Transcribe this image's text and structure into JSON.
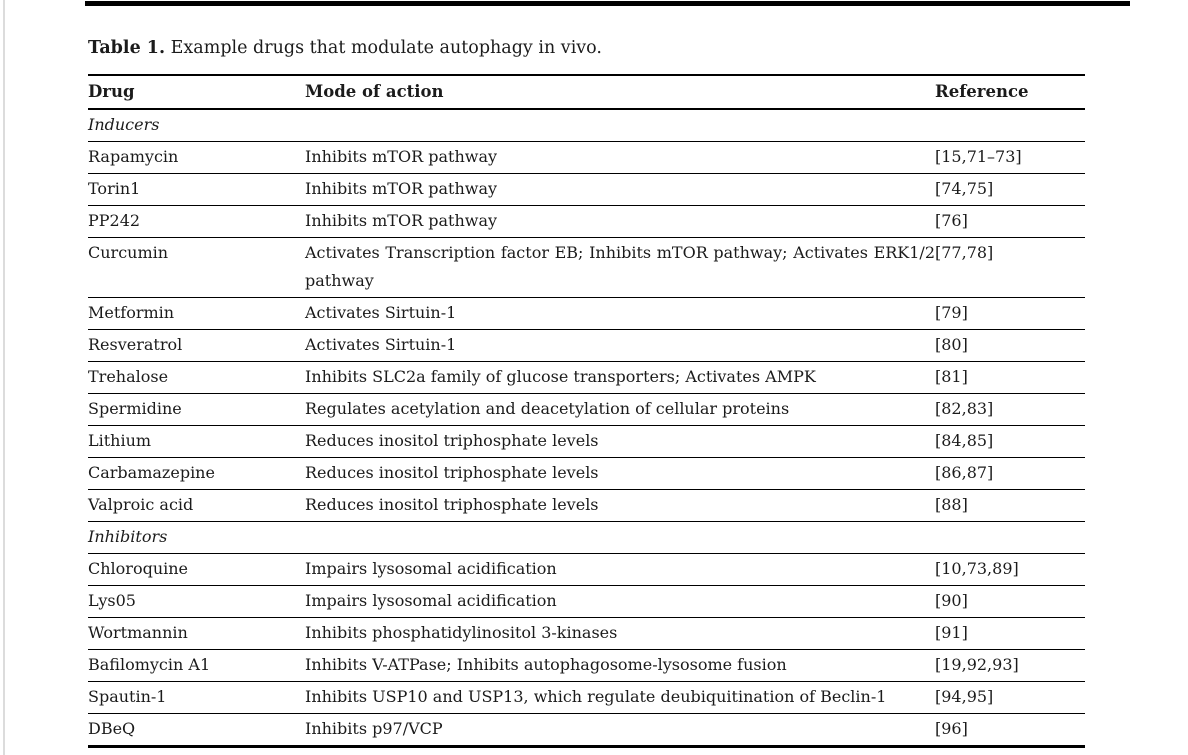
{
  "page": {
    "caption_label": "Table 1.",
    "caption_text": "Example drugs that modulate autophagy in vivo."
  },
  "colors": {
    "text": "#1b1b1b",
    "rule": "#000000",
    "page_edge": "#dcdcdc",
    "background": "#ffffff"
  },
  "table": {
    "headers": [
      "Drug",
      "Mode of action",
      "Reference"
    ],
    "rows": [
      {
        "type": "section",
        "drug": "Inducers"
      },
      {
        "type": "row",
        "drug": "Rapamycin",
        "mode": "Inhibits mTOR pathway",
        "ref": "[15,71–73]"
      },
      {
        "type": "row",
        "drug": "Torin1",
        "mode": "Inhibits mTOR pathway",
        "ref": "[74,75]"
      },
      {
        "type": "row",
        "drug": "PP242",
        "mode": "Inhibits mTOR pathway",
        "ref": "[76]"
      },
      {
        "type": "row",
        "drug": "Curcumin",
        "mode": "Activates Transcription factor EB; Inhibits mTOR pathway; Activates ERK1/2 pathway",
        "ref": "[77,78]"
      },
      {
        "type": "row",
        "drug": "Metformin",
        "mode": "Activates Sirtuin-1",
        "ref": "[79]"
      },
      {
        "type": "row",
        "drug": "Resveratrol",
        "mode": "Activates Sirtuin-1",
        "ref": "[80]"
      },
      {
        "type": "row",
        "drug": "Trehalose",
        "mode": "Inhibits SLC2a family of glucose transporters; Activates AMPK",
        "ref": "[81]"
      },
      {
        "type": "row",
        "drug": "Spermidine",
        "mode": "Regulates acetylation and deacetylation of cellular proteins",
        "ref": "[82,83]"
      },
      {
        "type": "row",
        "drug": "Lithium",
        "mode": "Reduces inositol triphosphate levels",
        "ref": "[84,85]"
      },
      {
        "type": "row",
        "drug": "Carbamazepine",
        "mode": "Reduces inositol triphosphate levels",
        "ref": "[86,87]"
      },
      {
        "type": "row",
        "drug": "Valproic acid",
        "mode": "Reduces inositol triphosphate levels",
        "ref": "[88]"
      },
      {
        "type": "section",
        "drug": "Inhibitors"
      },
      {
        "type": "row",
        "drug": "Chloroquine",
        "mode": "Impairs lysosomal acidification",
        "ref": "[10,73,89]"
      },
      {
        "type": "row",
        "drug": "Lys05",
        "mode": "Impairs lysosomal acidification",
        "ref": "[90]"
      },
      {
        "type": "row",
        "drug": "Wortmannin",
        "mode": "Inhibits phosphatidylinositol 3-kinases",
        "ref": "[91]"
      },
      {
        "type": "row",
        "drug": "Bafilomycin A1",
        "mode": "Inhibits V-ATPase; Inhibits autophagosome-lysosome fusion",
        "ref": "[19,92,93]"
      },
      {
        "type": "row",
        "drug": "Spautin-1",
        "mode": "Inhibits USP10 and USP13, which regulate deubiquitination of Beclin-1",
        "ref": "[94,95]"
      },
      {
        "type": "row",
        "drug": "DBeQ",
        "mode": "Inhibits p97/VCP",
        "ref": "[96]"
      }
    ]
  }
}
